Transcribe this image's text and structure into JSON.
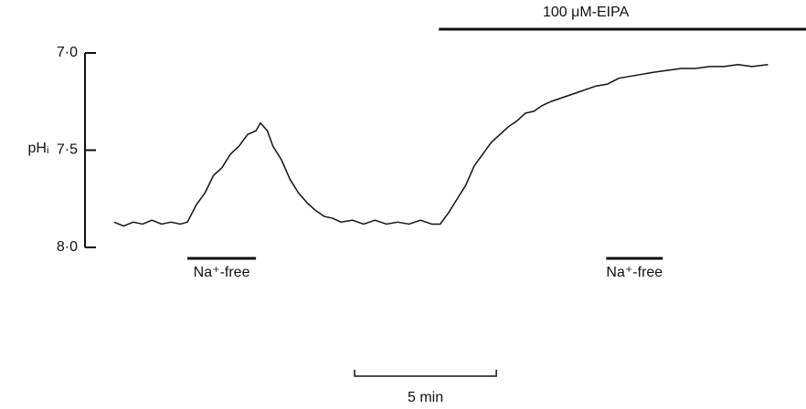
{
  "chart_data": {
    "type": "line",
    "y_label": "pHᵢ",
    "ylim": [
      8.0,
      7.0
    ],
    "yticks": [
      {
        "value": 7.0,
        "label": "7·0"
      },
      {
        "value": 7.5,
        "label": "7·5"
      },
      {
        "value": 8.0,
        "label": "8·0"
      }
    ],
    "xlim": [
      0,
      24.4
    ],
    "x": [
      0,
      0.33,
      0.67,
      1.0,
      1.33,
      1.67,
      2.0,
      2.33,
      2.58,
      2.9,
      3.2,
      3.5,
      3.8,
      4.1,
      4.4,
      4.7,
      5.0,
      5.16,
      5.4,
      5.6,
      5.9,
      6.2,
      6.5,
      6.8,
      7.1,
      7.4,
      7.7,
      8.0,
      8.4,
      8.8,
      9.2,
      9.6,
      10.0,
      10.4,
      10.8,
      11.2,
      11.5,
      11.8,
      12.1,
      12.4,
      12.7,
      13.0,
      13.3,
      13.6,
      13.9,
      14.2,
      14.5,
      14.8,
      15.1,
      15.4,
      15.8,
      16.2,
      16.6,
      17.0,
      17.4,
      17.8,
      18.2,
      18.6,
      19.0,
      19.5,
      20.0,
      20.5,
      21.0,
      21.5,
      22.0,
      22.5,
      23.06
    ],
    "series": [
      {
        "color": "#111111",
        "values": [
          7.87,
          7.89,
          7.87,
          7.88,
          7.86,
          7.88,
          7.87,
          7.88,
          7.87,
          7.78,
          7.72,
          7.63,
          7.59,
          7.52,
          7.48,
          7.42,
          7.4,
          7.36,
          7.4,
          7.48,
          7.55,
          7.65,
          7.72,
          7.77,
          7.81,
          7.84,
          7.85,
          7.87,
          7.86,
          7.88,
          7.86,
          7.88,
          7.87,
          7.88,
          7.86,
          7.88,
          7.88,
          7.82,
          7.75,
          7.68,
          7.58,
          7.52,
          7.46,
          7.42,
          7.38,
          7.35,
          7.31,
          7.3,
          7.27,
          7.25,
          7.23,
          7.21,
          7.19,
          7.17,
          7.16,
          7.13,
          7.12,
          7.11,
          7.1,
          7.09,
          7.08,
          7.08,
          7.07,
          7.07,
          7.06,
          7.07,
          7.06
        ]
      }
    ],
    "annotations": [
      {
        "label": "Na⁺-free",
        "start": 2.58,
        "end": 5.0,
        "position": "below"
      },
      {
        "label": "100 μM-EIPA",
        "start": 11.45,
        "end": 24.4,
        "position": "above"
      },
      {
        "label": "Na⁺-free",
        "start": 17.35,
        "end": 19.35,
        "position": "below"
      }
    ],
    "scale_bar": {
      "value": 5,
      "label": "5 min"
    }
  }
}
